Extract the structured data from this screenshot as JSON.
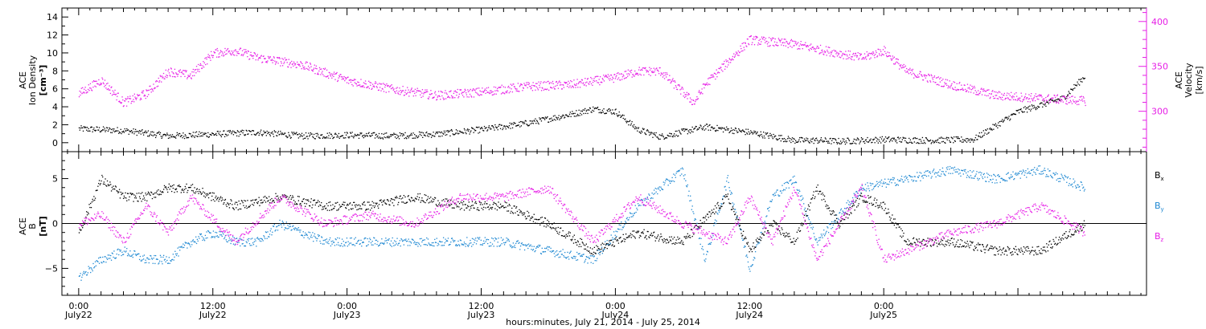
{
  "chart_data": [
    {
      "type": "scatter",
      "panel": "top",
      "ylabel": [
        "ACE",
        "Ion Density",
        "[cm⁻³]"
      ],
      "y2label": [
        "ACE",
        "Velocity",
        "[km/s]"
      ],
      "ylim": [
        -1,
        15
      ],
      "yticks": [
        "0",
        "2",
        "4",
        "6",
        "8",
        "10",
        "12",
        "14"
      ],
      "y2lim": [
        255,
        415
      ],
      "y2ticks": [
        "300",
        "350",
        "400"
      ],
      "colors": {
        "density": "#000000",
        "velocity": "#e61ee6"
      },
      "series": [
        {
          "key": "density",
          "axis": "left",
          "x_hours": [
            0,
            4,
            8,
            12,
            16,
            20,
            24,
            28,
            32,
            36,
            40,
            44,
            46,
            48,
            50,
            52,
            56,
            60,
            64,
            66,
            68,
            70,
            72,
            76,
            80,
            84,
            88,
            90
          ],
          "values": [
            1.6,
            1.4,
            0.8,
            1.0,
            1.2,
            0.8,
            0.9,
            0.8,
            1.0,
            1.5,
            2.2,
            3.2,
            3.8,
            3.5,
            1.5,
            0.7,
            1.8,
            1.2,
            0.3,
            0.3,
            0.2,
            0.3,
            0.4,
            0.3,
            0.4,
            3.5,
            5.0,
            7.5
          ]
        },
        {
          "key": "velocity",
          "axis": "right",
          "x_hours": [
            0,
            2,
            4,
            6,
            8,
            10,
            12,
            14,
            16,
            20,
            24,
            28,
            32,
            36,
            40,
            44,
            48,
            50,
            52,
            55,
            56,
            58,
            60,
            64,
            68,
            70,
            72,
            74,
            78,
            82,
            86,
            90
          ],
          "values": [
            320,
            335,
            310,
            320,
            345,
            340,
            365,
            368,
            360,
            352,
            335,
            325,
            318,
            322,
            328,
            330,
            338,
            345,
            345,
            310,
            330,
            355,
            380,
            375,
            365,
            360,
            368,
            345,
            330,
            318,
            315,
            312
          ]
        }
      ]
    },
    {
      "type": "scatter",
      "panel": "bottom",
      "ylabel": [
        "ACE",
        "B",
        "[nT]"
      ],
      "ylim": [
        -8,
        8
      ],
      "yticks": [
        "−5",
        "0",
        "5"
      ],
      "colors": {
        "Bx": "#000000",
        "By": "#1e88d2",
        "Bz": "#e61ee6"
      },
      "legend": [
        "Bx",
        "By",
        "Bz"
      ],
      "series": [
        {
          "key": "Bx",
          "x_hours": [
            0,
            2,
            4,
            6,
            8,
            10,
            14,
            18,
            22,
            26,
            30,
            34,
            38,
            42,
            46,
            50,
            54,
            58,
            60,
            62,
            64,
            66,
            68,
            70,
            72,
            74,
            78,
            82,
            86,
            90
          ],
          "values": [
            -1,
            5,
            3,
            3,
            4,
            4,
            2,
            3,
            2,
            2,
            3,
            2,
            2,
            0,
            -3,
            -1,
            -2,
            3,
            -3,
            0,
            -2,
            4,
            0,
            3,
            2,
            -2,
            -2,
            -3,
            -3,
            0
          ]
        },
        {
          "key": "By",
          "x_hours": [
            0,
            2,
            4,
            6,
            8,
            10,
            12,
            14,
            16,
            18,
            22,
            26,
            30,
            34,
            38,
            42,
            46,
            50,
            54,
            56,
            58,
            60,
            62,
            64,
            66,
            70,
            74,
            78,
            82,
            86,
            90
          ],
          "values": [
            -6,
            -4,
            -3,
            -4,
            -4,
            -2,
            -1,
            -2,
            -2,
            0,
            -2,
            -2,
            -2,
            -2,
            -2,
            -3,
            -4,
            2,
            6,
            -4,
            5,
            -5,
            3,
            5,
            -2,
            4,
            5,
            6,
            5,
            6,
            4
          ]
        },
        {
          "key": "Bz",
          "x_hours": [
            0,
            2,
            4,
            6,
            8,
            10,
            14,
            18,
            22,
            26,
            30,
            34,
            38,
            42,
            46,
            50,
            54,
            58,
            60,
            62,
            64,
            66,
            68,
            70,
            72,
            74,
            78,
            82,
            86,
            90
          ],
          "values": [
            0,
            1,
            -2,
            2,
            -1,
            3,
            -2,
            3,
            0,
            1,
            0,
            3,
            3,
            4,
            -2,
            3,
            0,
            -2,
            3,
            -2,
            4,
            -4,
            0,
            4,
            -4,
            -3,
            -1,
            0,
            2,
            -1
          ]
        }
      ]
    }
  ],
  "x_axis": {
    "label": "hours:minutes, July 21, 2014 - July 25, 2014",
    "range_hours": [
      -1.5,
      95.5
    ],
    "ticks": [
      {
        "hour": 0,
        "time": "0:00",
        "date": "July22"
      },
      {
        "hour": 12,
        "time": "12:00",
        "date": "July22"
      },
      {
        "hour": 24,
        "time": "0:00",
        "date": "July23"
      },
      {
        "hour": 36,
        "time": "12:00",
        "date": "July23"
      },
      {
        "hour": 48,
        "time": "0:00",
        "date": "July24"
      },
      {
        "hour": 60,
        "time": "12:00",
        "date": "July24"
      },
      {
        "hour": 72,
        "time": "0:00",
        "date": "July25"
      }
    ]
  },
  "legend_labels": {
    "bx": "B",
    "bx_sub": "x",
    "by": "B",
    "by_sub": "y",
    "bz": "B",
    "bz_sub": "z"
  },
  "labels": {
    "top_left_1": "ACE",
    "top_left_2": "Ion Density",
    "top_left_3": "[cm⁻³]",
    "top_right_1": "ACE",
    "top_right_2": "Velocity",
    "top_right_3": "[km/s]",
    "bot_left_1": "ACE",
    "bot_left_2": "B",
    "bot_left_3": "[nT]"
  }
}
